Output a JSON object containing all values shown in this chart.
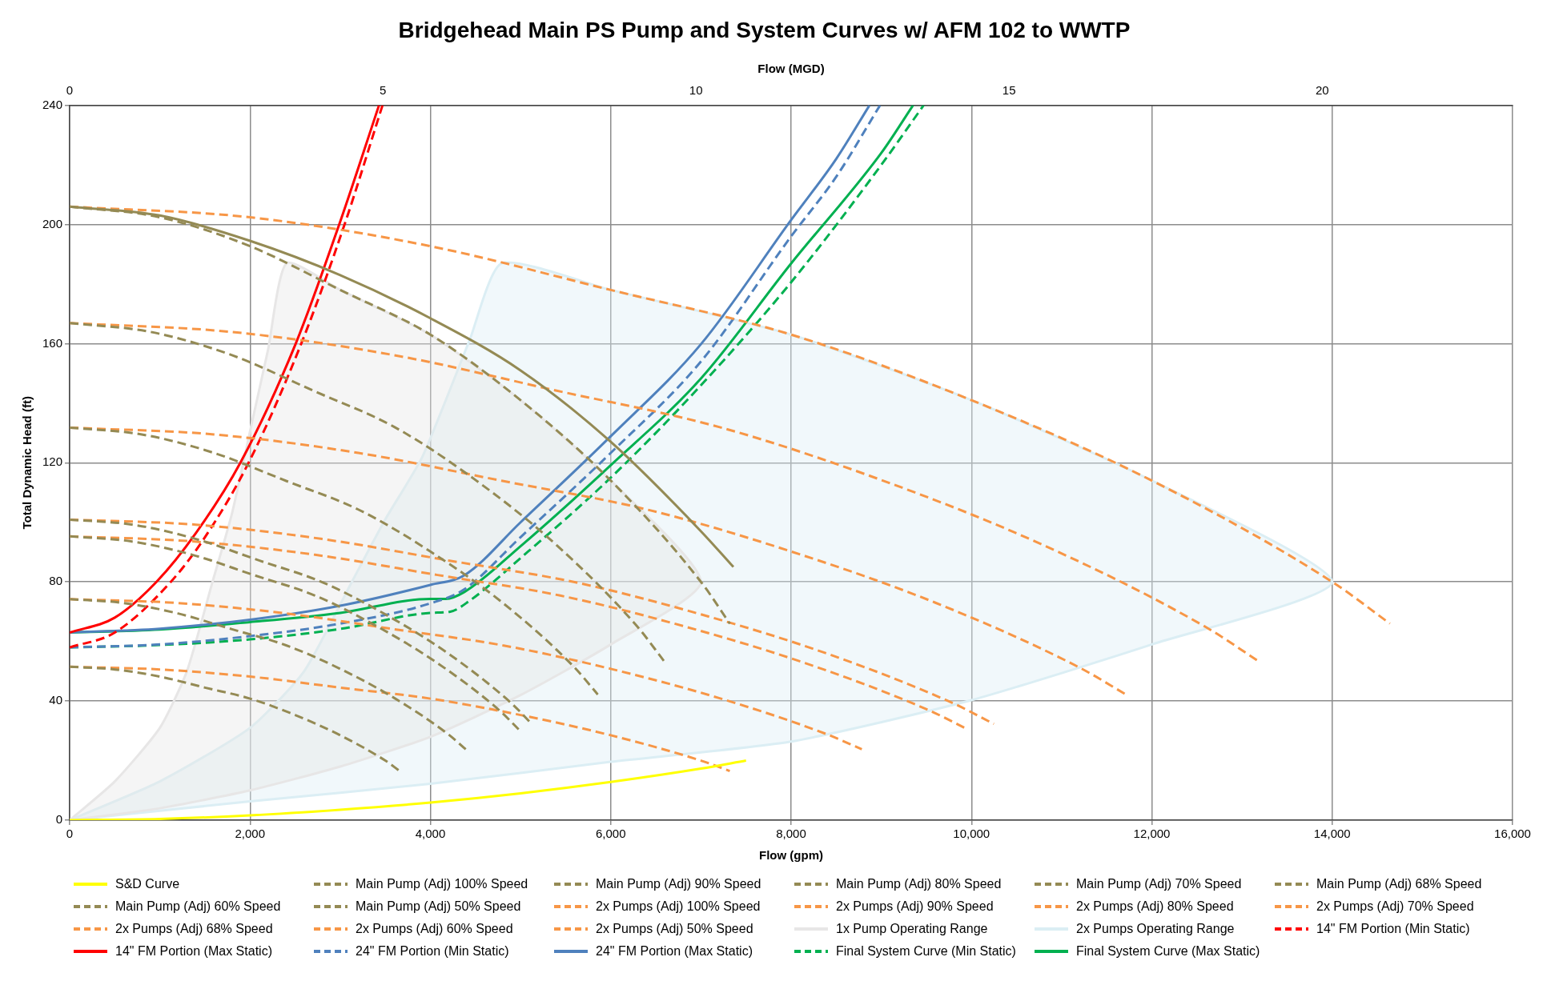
{
  "chart_data": {
    "type": "line",
    "title": "Bridgehead Main PS Pump and System Curves w/ AFM 102 to WWTP",
    "xlabel": "Flow (gpm)",
    "x2label": "Flow (MGD)",
    "ylabel": "Total Dynamic Head (ft)",
    "xlim": [
      0,
      16000
    ],
    "xticks": [
      0,
      {
        "value": 2000,
        "label": "2,000"
      },
      {
        "value": 4000,
        "label": "4,000"
      },
      {
        "value": 6000,
        "label": "6,000"
      },
      {
        "value": 8000,
        "label": "8,000"
      },
      {
        "value": 10000,
        "label": "10,000"
      },
      {
        "value": 12000,
        "label": "12,000"
      },
      {
        "value": 14000,
        "label": "14,000"
      },
      {
        "value": 16000,
        "label": "16,000"
      }
    ],
    "x2lim": [
      0,
      23.04
    ],
    "x2ticks": [
      0,
      5,
      10,
      15,
      20
    ],
    "ylim": [
      0,
      240
    ],
    "yticks": [
      0,
      40,
      80,
      120,
      160,
      200,
      240
    ],
    "grid": true,
    "legend": "bottom",
    "marker": "none",
    "series": [
      {
        "name": "S&D Curve",
        "color": "#ffff00",
        "line_style": "solid",
        "x": [
          0,
          1000,
          2000,
          3000,
          4000,
          5000,
          6000,
          7000,
          7500
        ],
        "values": [
          0,
          0.4,
          1.6,
          3.5,
          5.9,
          9,
          12.8,
          17.3,
          20
        ]
      },
      {
        "color": "#948a54",
        "line_style": "solid",
        "x": [
          0,
          1000,
          2000,
          3000,
          4000,
          5000,
          6000,
          7000,
          7360
        ],
        "values": [
          206,
          203,
          194.5,
          183,
          168.5,
          151,
          127,
          97,
          85
        ]
      },
      {
        "name": "Main Pump (Adj) 100% Speed",
        "color": "#948a54",
        "line_style": "dashed",
        "x": [
          0,
          1000,
          2000,
          3000,
          4000,
          5000,
          6000,
          7000,
          7320
        ],
        "values": [
          206,
          202.4,
          192.7,
          178,
          163,
          141,
          114,
          80,
          66
        ]
      },
      {
        "name": "Main Pump (Adj) 90% Speed",
        "color": "#948a54",
        "line_style": "dashed",
        "x": [
          0,
          900,
          1800,
          2700,
          3600,
          4500,
          5400,
          6300,
          6588
        ],
        "values": [
          166.9,
          163.9,
          156.1,
          144.2,
          132,
          114.2,
          92.3,
          64.8,
          53.5
        ]
      },
      {
        "name": "Main Pump (Adj) 80% Speed",
        "color": "#948a54",
        "line_style": "dashed",
        "x": [
          0,
          800,
          1600,
          2400,
          3200,
          4000,
          4800,
          5600,
          5856
        ],
        "values": [
          131.8,
          129.5,
          123.3,
          113.9,
          104.3,
          90.2,
          73,
          51.2,
          42.2
        ]
      },
      {
        "name": "Main Pump (Adj) 70% Speed",
        "color": "#948a54",
        "line_style": "dashed",
        "x": [
          0,
          700,
          1400,
          2100,
          2800,
          3500,
          4200,
          4900,
          5124
        ],
        "values": [
          100.9,
          99.2,
          94.4,
          87.2,
          79.9,
          69.1,
          55.9,
          39.2,
          32.3
        ]
      },
      {
        "name": "Main Pump (Adj) 68% Speed",
        "color": "#948a54",
        "line_style": "dashed",
        "x": [
          0,
          680,
          1360,
          2040,
          2720,
          3400,
          4080,
          4760,
          4978
        ],
        "values": [
          95.3,
          93.6,
          89.1,
          82.3,
          75.4,
          65.2,
          52.7,
          37,
          30.5
        ]
      },
      {
        "name": "Main Pump (Adj) 60% Speed",
        "color": "#948a54",
        "line_style": "dashed",
        "x": [
          0,
          600,
          1200,
          1800,
          2400,
          3000,
          3600,
          4200,
          4392
        ],
        "values": [
          74.2,
          72.9,
          69.4,
          64.1,
          58.7,
          50.8,
          41,
          28.8,
          23.8
        ]
      },
      {
        "name": "Main Pump (Adj) 50% Speed",
        "color": "#948a54",
        "line_style": "dashed",
        "x": [
          0,
          500,
          1000,
          1500,
          2000,
          2500,
          3000,
          3500,
          3660
        ],
        "values": [
          51.5,
          50.6,
          48.2,
          44.5,
          40.8,
          35.3,
          28.5,
          20,
          16.5
        ]
      },
      {
        "name": "2x Pumps (Adj) 100% Speed",
        "color": "#f79646",
        "line_style": "dashed",
        "x": [
          0,
          2000,
          4000,
          6000,
          8000,
          10000,
          12000,
          14000,
          14640
        ],
        "values": [
          206,
          202.4,
          192.7,
          178,
          163,
          141,
          114,
          80,
          66
        ]
      },
      {
        "name": "2x Pumps (Adj) 90% Speed",
        "color": "#f79646",
        "line_style": "dashed",
        "x": [
          0,
          1800,
          3600,
          5400,
          7200,
          9000,
          10800,
          12600,
          13176
        ],
        "values": [
          166.9,
          163.9,
          156.1,
          144.2,
          132,
          114.2,
          92.3,
          64.8,
          53.5
        ]
      },
      {
        "name": "2x Pumps (Adj) 80% Speed",
        "color": "#f79646",
        "line_style": "dashed",
        "x": [
          0,
          1600,
          3200,
          4800,
          6400,
          8000,
          9600,
          11200,
          11712
        ],
        "values": [
          131.8,
          129.5,
          123.3,
          113.9,
          104.3,
          90.2,
          73,
          51.2,
          42.2
        ]
      },
      {
        "name": "2x Pumps (Adj) 70% Speed",
        "color": "#f79646",
        "line_style": "dashed",
        "x": [
          0,
          1400,
          2800,
          4200,
          5600,
          7000,
          8400,
          9800,
          10248
        ],
        "values": [
          100.9,
          99.2,
          94.4,
          87.2,
          79.9,
          69.1,
          55.9,
          39.2,
          32.3
        ]
      },
      {
        "name": "2x Pumps (Adj) 68% Speed",
        "color": "#f79646",
        "line_style": "dashed",
        "x": [
          0,
          1360,
          2720,
          4080,
          5440,
          6800,
          8160,
          9520,
          9956
        ],
        "values": [
          95.3,
          93.6,
          89.1,
          82.3,
          75.4,
          65.2,
          52.7,
          37,
          30.5
        ]
      },
      {
        "name": "2x Pumps (Adj) 60% Speed",
        "color": "#f79646",
        "line_style": "dashed",
        "x": [
          0,
          1200,
          2400,
          3600,
          4800,
          6000,
          7200,
          8400,
          8784
        ],
        "values": [
          74.2,
          72.9,
          69.4,
          64.1,
          58.7,
          50.8,
          41,
          28.8,
          23.8
        ]
      },
      {
        "name": "2x Pumps (Adj) 50% Speed",
        "color": "#f79646",
        "line_style": "dashed",
        "x": [
          0,
          1000,
          2000,
          3000,
          4000,
          5000,
          6000,
          7000,
          7320
        ],
        "values": [
          51.5,
          50.6,
          48.2,
          44.5,
          40.8,
          35.3,
          28.5,
          20,
          16.5
        ]
      },
      {
        "name": "1x Pump Operating Range",
        "type": "area",
        "color": "#e7e6e6",
        "line_style": "solid",
        "x": [
          0,
          500,
          1000,
          1300,
          1584,
          1800,
          2025,
          2200,
          2406,
          3000,
          4000,
          5000,
          6000,
          7000,
          6000,
          5000,
          4000,
          3000,
          2000,
          1000,
          0
        ],
        "values": [
          0,
          13,
          31,
          50,
          80,
          103,
          134,
          158,
          187,
          178,
          163,
          141,
          114,
          80,
          59,
          42,
          28,
          18,
          10,
          4,
          0
        ]
      },
      {
        "name": "2x Pumps Operating Range",
        "type": "area",
        "color": "#dbeef4",
        "line_style": "solid",
        "x": [
          0,
          1000,
          2000,
          2600,
          3129,
          3500,
          3911,
          4433,
          4793,
          6000,
          8000,
          10000,
          12000,
          14000,
          12000,
          10000,
          8000,
          6000,
          4000,
          2000,
          0
        ],
        "values": [
          0,
          13,
          31,
          50,
          80,
          101,
          122,
          161,
          187,
          178,
          163,
          141,
          114,
          80,
          59,
          40.3,
          26.4,
          19.6,
          12.2,
          6.3,
          0
        ]
      },
      {
        "name": "14\" FM Portion (Min Static)",
        "color": "#ff0000",
        "line_style": "dashed",
        "x": [
          0,
          500,
          1121,
          1500,
          1984,
          2568,
          3048,
          3469
        ],
        "values": [
          58,
          63,
          80,
          95,
          120,
          160,
          200,
          240
        ]
      },
      {
        "name": "14\" FM Portion (Max Static)",
        "color": "#ff0000",
        "line_style": "solid",
        "x": [
          0,
          500,
          962,
          1400,
          1893,
          2507,
          2989,
          3430
        ],
        "values": [
          63,
          68,
          80,
          96.4,
          120,
          160,
          200,
          240
        ]
      },
      {
        "name": "24\" FM Portion (Min Static)",
        "color": "#4f81bd",
        "line_style": "dashed",
        "x": [
          0,
          1000,
          2000,
          3000,
          4000,
          4376,
          5000,
          6000,
          7000,
          8000,
          8500,
          8986
        ],
        "values": [
          58,
          59,
          61.8,
          66,
          72.8,
          77.5,
          95,
          123.3,
          154,
          196,
          216,
          240
        ]
      },
      {
        "name": "24\" FM Portion (Max Static)",
        "color": "#4f81bd",
        "line_style": "solid",
        "x": [
          0,
          1000,
          2000,
          3000,
          4000,
          4376,
          5000,
          6000,
          7000,
          8000,
          8500,
          8869
        ],
        "values": [
          63,
          64.3,
          67.3,
          72,
          79,
          82.2,
          100,
          128.9,
          159.8,
          201.5,
          222,
          240
        ]
      },
      {
        "name": "Final System Curve (Min Static)",
        "color": "#00b050",
        "line_style": "dashed",
        "x": [
          0,
          1000,
          2000,
          3000,
          4000,
          4220,
          4427,
          5000,
          6000,
          7000,
          8000,
          9000,
          9469
        ],
        "values": [
          58,
          58.8,
          60.7,
          64.2,
          69.6,
          70,
          73.5,
          88,
          115,
          146,
          180.6,
          220,
          240
        ]
      },
      {
        "name": "Final System Curve (Max Static)",
        "color": "#00b050",
        "line_style": "solid",
        "x": [
          0,
          1000,
          2000,
          3000,
          4000,
          4170,
          4376,
          5000,
          6000,
          7000,
          8000,
          9000,
          9352
        ],
        "values": [
          63,
          64,
          66.5,
          69.6,
          74.3,
          74.3,
          76.6,
          92,
          119.2,
          148.3,
          186.9,
          224,
          240
        ]
      }
    ]
  }
}
